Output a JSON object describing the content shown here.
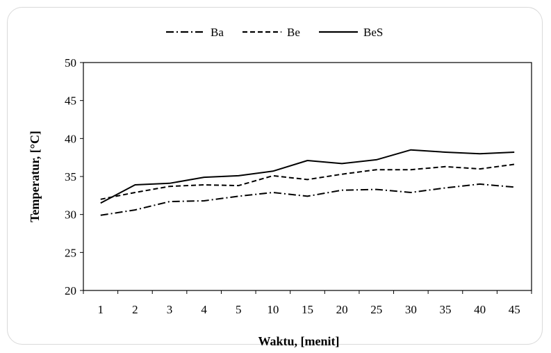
{
  "chart_data": {
    "type": "line",
    "title": "",
    "xlabel": "Waktu, [menit]",
    "ylabel": "Temperatur, [°C]",
    "categories": [
      "1",
      "2",
      "3",
      "4",
      "5",
      "10",
      "15",
      "20",
      "25",
      "30",
      "35",
      "40",
      "45"
    ],
    "ylim": [
      20,
      50
    ],
    "yticks": [
      20,
      25,
      30,
      35,
      40,
      45,
      50
    ],
    "grid": false,
    "legend_position": "top",
    "series": [
      {
        "name": "Ba",
        "style": "dash-dot",
        "color": "#000000",
        "values": [
          29.9,
          30.6,
          31.7,
          31.8,
          32.4,
          32.9,
          32.4,
          33.2,
          33.3,
          32.9,
          33.5,
          34.0,
          33.6
        ]
      },
      {
        "name": "Be",
        "style": "dashed",
        "color": "#000000",
        "values": [
          32.0,
          32.9,
          33.7,
          33.9,
          33.8,
          35.1,
          34.6,
          35.3,
          35.9,
          35.9,
          36.3,
          36.0,
          36.6
        ]
      },
      {
        "name": "BeS",
        "style": "solid",
        "color": "#000000",
        "values": [
          31.5,
          33.9,
          34.1,
          34.9,
          35.1,
          35.7,
          37.1,
          36.7,
          37.2,
          38.5,
          38.2,
          38.0,
          38.2
        ]
      }
    ]
  }
}
